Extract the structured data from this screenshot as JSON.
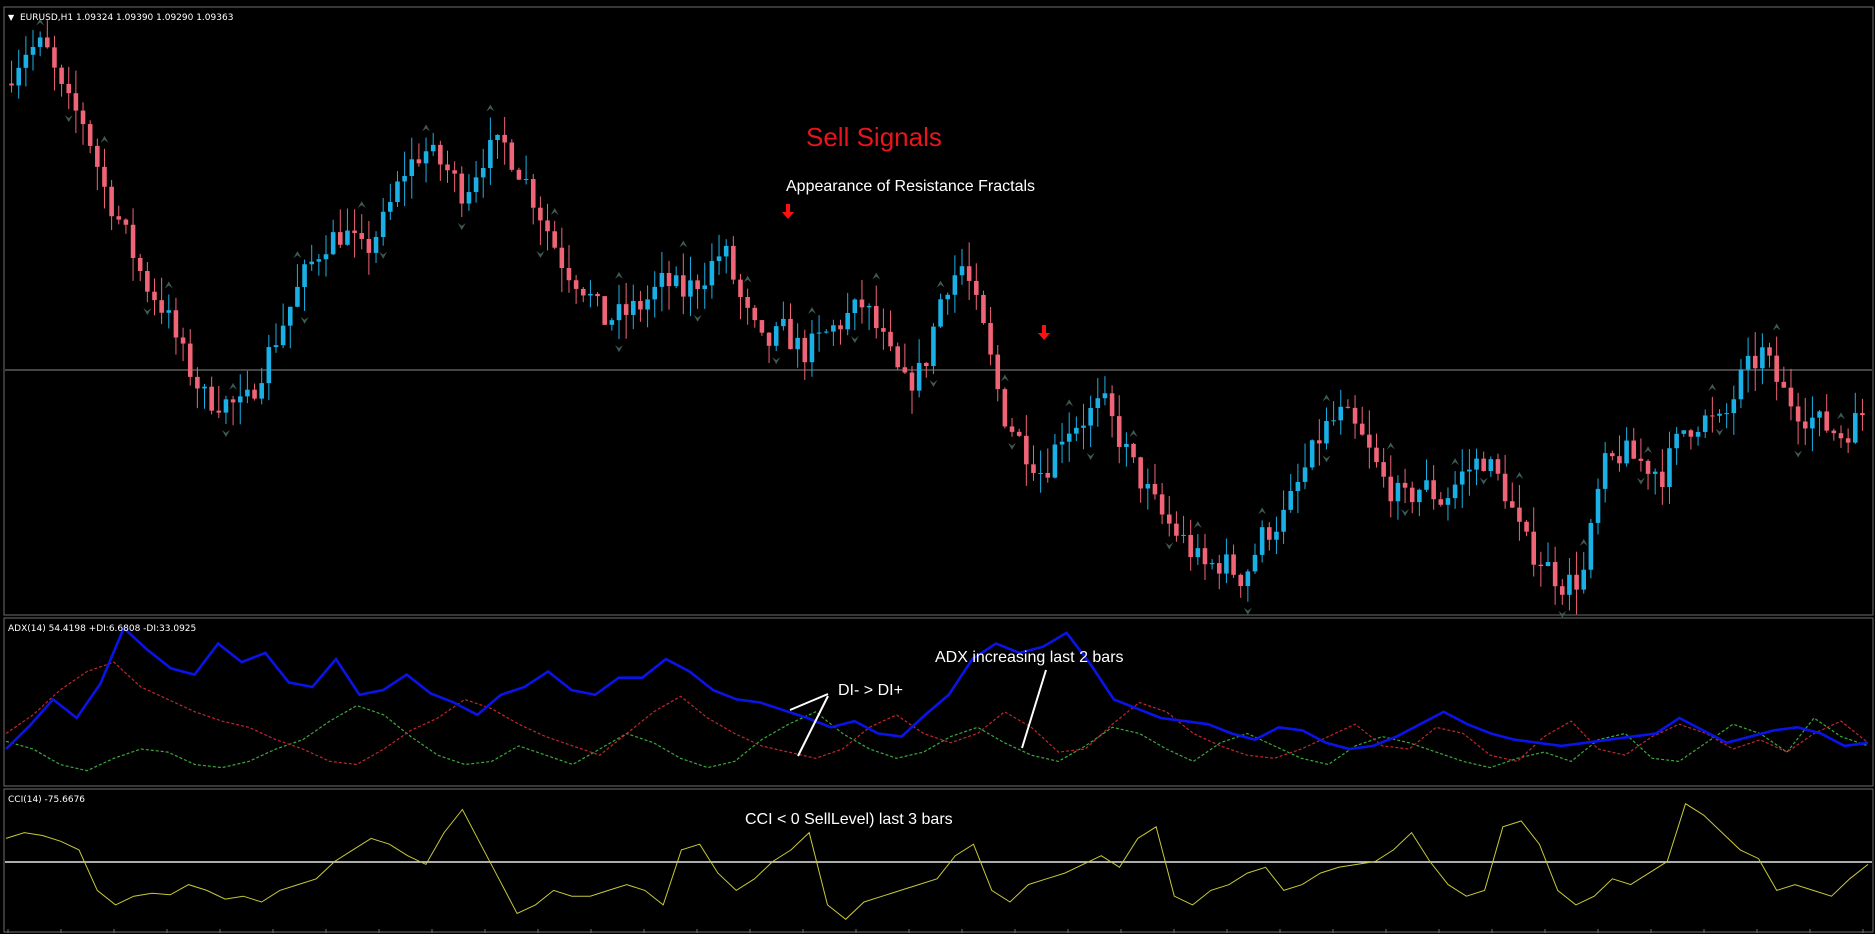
{
  "main_panel": {
    "label": "EURUSD,H1  1.09324 1.09390 1.09290 1.09363",
    "annotations": {
      "title": "Sell Signals",
      "subtitle": "Appearance of Resistance Fractals"
    }
  },
  "adx_panel": {
    "label": "ADX(14) 54.4198 +DI:6.6808 -DI:33.0925",
    "annotations": {
      "di_note": "DI- > DI+",
      "adx_note": "ADX increasing last 2 bars"
    }
  },
  "cci_panel": {
    "label": "CCI(14) -75.6676",
    "annotations": {
      "cci_note": "CCI < 0 SellLevel) last 3 bars"
    }
  },
  "colors": {
    "background": "#000000",
    "bull_candle": "#1ab0e6",
    "bear_candle": "#f06477",
    "fractal": "#3e5a52",
    "adx_line": "#0a14e6",
    "plus_di": "#3aa93a",
    "minus_di": "#c0272d",
    "cci_line": "#c8c83a",
    "sell_arrow": "#ff1010",
    "title_red": "#e8151b",
    "panel_border": "#6e6e6e"
  },
  "chart_data": [
    {
      "type": "candlestick",
      "symbol": "EURUSD",
      "timeframe": "H1",
      "last_ohlc": [
        1.09324,
        1.0939,
        1.0929,
        1.09363
      ],
      "price_profile": [
        0.93,
        0.99,
        1.0,
        0.9,
        0.86,
        0.74,
        0.66,
        0.57,
        0.52,
        0.43,
        0.36,
        0.35,
        0.34,
        0.42,
        0.5,
        0.58,
        0.64,
        0.66,
        0.62,
        0.68,
        0.77,
        0.81,
        0.78,
        0.73,
        0.8,
        0.82,
        0.76,
        0.68,
        0.6,
        0.56,
        0.5,
        0.51,
        0.53,
        0.57,
        0.55,
        0.58,
        0.63,
        0.52,
        0.45,
        0.48,
        0.44,
        0.47,
        0.5,
        0.53,
        0.46,
        0.38,
        0.41,
        0.56,
        0.6,
        0.48,
        0.33,
        0.27,
        0.22,
        0.3,
        0.32,
        0.35,
        0.27,
        0.2,
        0.14,
        0.1,
        0.05,
        0.06,
        0.03,
        0.11,
        0.14,
        0.22,
        0.3,
        0.33,
        0.28,
        0.21,
        0.17,
        0.2,
        0.17,
        0.22,
        0.25,
        0.2,
        0.1,
        0.06,
        0.02,
        0.03,
        0.23,
        0.26,
        0.24,
        0.22,
        0.3,
        0.32,
        0.31,
        0.4,
        0.44,
        0.37,
        0.33,
        0.31,
        0.29,
        0.33
      ],
      "sell_arrows": 2
    },
    {
      "type": "line",
      "name": "ADX(14)",
      "series": [
        {
          "name": "ADX",
          "values": [
            20,
            35,
            52,
            40,
            62,
            98,
            84,
            72,
            68,
            88,
            76,
            82,
            63,
            60,
            78,
            55,
            58,
            68,
            56,
            50,
            42,
            55,
            60,
            70,
            58,
            55,
            66,
            66,
            78,
            70,
            58,
            52,
            50,
            45,
            40,
            34,
            38,
            30,
            28,
            42,
            55,
            78,
            88,
            82,
            86,
            95,
            75,
            52,
            46,
            40,
            38,
            36,
            30,
            26,
            34,
            32,
            24,
            20,
            22,
            28,
            36,
            44,
            36,
            30,
            26,
            24,
            22,
            24,
            26,
            28,
            30,
            40,
            32,
            24,
            28,
            32,
            34,
            30,
            22,
            24
          ]
        },
        {
          "name": "+DI",
          "values": [
            25,
            20,
            10,
            6,
            14,
            20,
            18,
            10,
            8,
            12,
            20,
            26,
            38,
            48,
            42,
            28,
            16,
            10,
            12,
            22,
            16,
            10,
            20,
            30,
            24,
            14,
            8,
            12,
            26,
            36,
            44,
            30,
            20,
            14,
            18,
            28,
            34,
            24,
            16,
            12,
            22,
            34,
            30,
            20,
            12,
            24,
            30,
            22,
            14,
            10,
            22,
            28,
            24,
            18,
            12,
            8,
            14,
            18,
            12,
            26,
            30,
            14,
            12,
            24,
            36,
            30,
            18,
            40,
            28,
            22
          ]
        },
        {
          "name": "-DI",
          "values": [
            30,
            42,
            58,
            70,
            76,
            60,
            52,
            44,
            38,
            34,
            26,
            20,
            12,
            10,
            20,
            32,
            40,
            52,
            46,
            36,
            28,
            22,
            16,
            30,
            44,
            54,
            40,
            30,
            22,
            18,
            14,
            20,
            34,
            42,
            30,
            24,
            30,
            44,
            34,
            18,
            20,
            36,
            50,
            44,
            30,
            22,
            16,
            14,
            20,
            28,
            36,
            22,
            20,
            34,
            30,
            16,
            12,
            28,
            38,
            20,
            16,
            28,
            36,
            30,
            20,
            26,
            18,
            30,
            38,
            24
          ]
        }
      ]
    },
    {
      "type": "line",
      "name": "CCI(14)",
      "zero_level": 0,
      "values": [
        80,
        100,
        90,
        70,
        40,
        -100,
        -150,
        -120,
        -110,
        -115,
        -80,
        -100,
        -130,
        -120,
        -140,
        -100,
        -80,
        -60,
        0,
        40,
        80,
        60,
        20,
        -10,
        100,
        180,
        60,
        -60,
        -180,
        -150,
        -100,
        -120,
        -120,
        -100,
        -80,
        -100,
        -150,
        40,
        60,
        -40,
        -100,
        -60,
        0,
        40,
        100,
        -150,
        -200,
        -140,
        -120,
        -100,
        -80,
        -60,
        20,
        60,
        -100,
        -140,
        -80,
        -60,
        -40,
        -10,
        20,
        -20,
        80,
        120,
        -120,
        -150,
        -100,
        -80,
        -40,
        -20,
        -100,
        -80,
        -40,
        -20,
        -10,
        0,
        40,
        100,
        0,
        -80,
        -120,
        -100,
        120,
        140,
        60,
        -100,
        -150,
        -120,
        -60,
        -80,
        -40,
        0,
        200,
        160,
        100,
        40,
        10,
        -100,
        -80,
        -100,
        -120,
        -60,
        -10
      ]
    }
  ]
}
